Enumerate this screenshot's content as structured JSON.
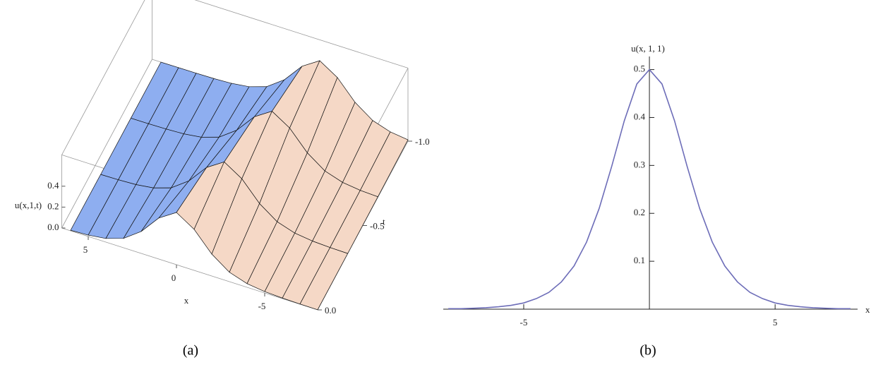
{
  "chart_data": [
    {
      "type": "surface",
      "zlabel": "u(x,1,t)",
      "xlabel": "x",
      "tlabel": "t",
      "caption": "(a)",
      "x": [
        -8,
        -7,
        -6,
        -5,
        -4,
        -3,
        -2,
        -1,
        0,
        1,
        2,
        3,
        4,
        5,
        6
      ],
      "t": [
        0,
        -0.333,
        -0.667,
        -1
      ],
      "z": [
        [
          0.001,
          0.002,
          0.005,
          0.013,
          0.035,
          0.09,
          0.21,
          0.393,
          0.5,
          0.393,
          0.21,
          0.09,
          0.035,
          0.013,
          0.005
        ],
        [
          0.002,
          0.005,
          0.013,
          0.035,
          0.09,
          0.21,
          0.393,
          0.5,
          0.393,
          0.21,
          0.09,
          0.035,
          0.013,
          0.005,
          0.002
        ],
        [
          0.005,
          0.013,
          0.035,
          0.09,
          0.21,
          0.393,
          0.5,
          0.393,
          0.21,
          0.09,
          0.035,
          0.013,
          0.005,
          0.002,
          0.001
        ],
        [
          0.013,
          0.035,
          0.09,
          0.21,
          0.393,
          0.5,
          0.393,
          0.21,
          0.09,
          0.035,
          0.013,
          0.005,
          0.002,
          0.001,
          0
        ]
      ],
      "xlim": [
        -8,
        6.5
      ],
      "tlim": [
        -1,
        0
      ],
      "zlim": [
        0,
        0.7
      ],
      "xticks": [
        5,
        0,
        -5
      ],
      "tticks": [
        {
          "value": -1,
          "label": "-1.0"
        },
        {
          "value": -0.5,
          "label": "-0.5"
        },
        {
          "value": 0,
          "label": "0.0"
        }
      ],
      "zticks": [
        {
          "value": 0,
          "label": "0.0"
        },
        {
          "value": 0.2,
          "label": "0.2"
        },
        {
          "value": 0.4,
          "label": "0.4"
        }
      ],
      "colors": [
        "#8eaef0",
        "#f5d8c6"
      ]
    },
    {
      "type": "line",
      "ylabel": "u(x, 1, 1)",
      "xlabel": "x",
      "caption": "(b)",
      "color": "#6d6db8",
      "x": [
        -8,
        -7.5,
        -7,
        -6.5,
        -6,
        -5.5,
        -5,
        -4.5,
        -4,
        -3.5,
        -3,
        -2.5,
        -2,
        -1.5,
        -1,
        -0.5,
        0,
        0.5,
        1,
        1.5,
        2,
        2.5,
        3,
        3.5,
        4,
        4.5,
        5,
        5.5,
        6,
        6.5,
        7,
        7.5,
        8
      ],
      "values": [
        0.001,
        0.001,
        0.002,
        0.003,
        0.005,
        0.008,
        0.013,
        0.022,
        0.035,
        0.057,
        0.09,
        0.14,
        0.21,
        0.298,
        0.393,
        0.47,
        0.5,
        0.47,
        0.393,
        0.298,
        0.21,
        0.14,
        0.09,
        0.057,
        0.035,
        0.022,
        0.013,
        0.008,
        0.005,
        0.003,
        0.002,
        0.001,
        0.001
      ],
      "xlim": [
        -8.2,
        8
      ],
      "ylim": [
        0,
        0.52
      ],
      "xticks": [
        -5,
        5
      ],
      "yticks": [
        0.1,
        0.2,
        0.3,
        0.4,
        0.5
      ]
    }
  ]
}
